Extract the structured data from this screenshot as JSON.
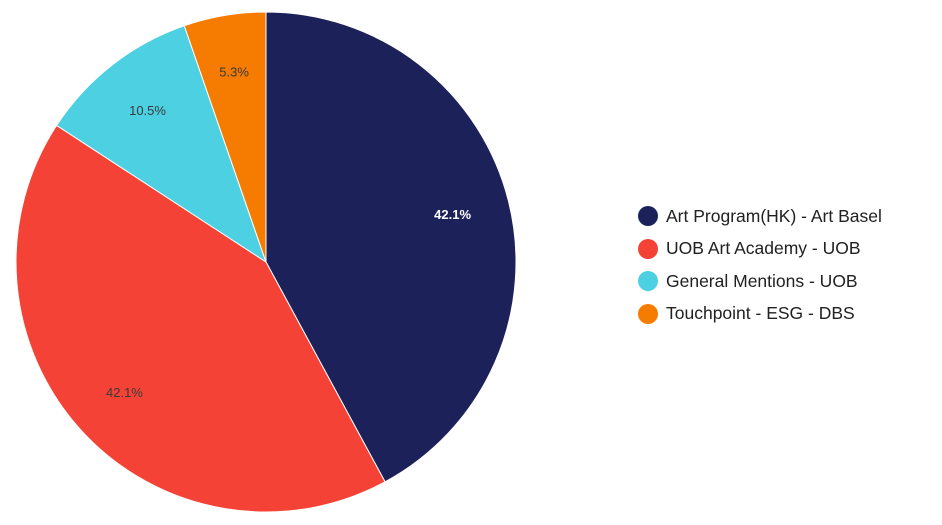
{
  "chart_data": {
    "type": "pie",
    "title": "",
    "start_angle_deg": 0,
    "direction": "clockwise",
    "legend_position": "right",
    "slices": [
      {
        "label": "Art Program(HK) - Art Basel",
        "value": 42.1,
        "display": "42.1%",
        "color": "#1c2259",
        "label_color": "#ffffff"
      },
      {
        "label": "UOB Art Academy - UOB",
        "value": 42.1,
        "display": "42.1%",
        "color": "#f44336",
        "label_color": "#3a3a3a"
      },
      {
        "label": "General Mentions - UOB",
        "value": 10.5,
        "display": "10.5%",
        "color": "#4dd0e1",
        "label_color": "#3a3a3a"
      },
      {
        "label": "Touchpoint - ESG - DBS",
        "value": 5.3,
        "display": "5.3%",
        "color": "#f57c00",
        "label_color": "#3a3a3a"
      }
    ]
  }
}
